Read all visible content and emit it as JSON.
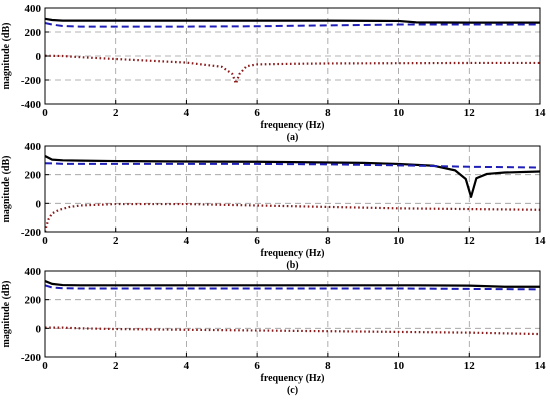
{
  "chart_data": [
    {
      "type": "line",
      "caption": "(a)",
      "xlabel": "frequency (Hz)",
      "ylabel": "magnitude (dB)",
      "xlim": [
        0,
        14
      ],
      "ylim": [
        -400,
        400
      ],
      "xticks": [
        0,
        2,
        4,
        6,
        8,
        10,
        12,
        14
      ],
      "yticks": [
        -400,
        -200,
        0,
        200,
        400
      ],
      "grid": true,
      "series": [
        {
          "color": "#000000",
          "style": "solid",
          "x": [
            0,
            0.2,
            0.5,
            1,
            2,
            4,
            6,
            8,
            10,
            10.5,
            12,
            14
          ],
          "y": [
            310,
            300,
            295,
            295,
            295,
            295,
            295,
            295,
            292,
            280,
            278,
            278
          ]
        },
        {
          "color": "#1f1fb8",
          "style": "dashed",
          "x": [
            0,
            0.2,
            0.5,
            1,
            2,
            4,
            6,
            8,
            10,
            12,
            14
          ],
          "y": [
            275,
            262,
            250,
            245,
            245,
            245,
            248,
            255,
            262,
            262,
            262
          ]
        },
        {
          "color": "#8b1a1a",
          "style": "dotted",
          "x": [
            0,
            0.5,
            1,
            2,
            3,
            4,
            5,
            5.3,
            5.4,
            5.5,
            5.7,
            6,
            7,
            8,
            10,
            12,
            14
          ],
          "y": [
            2,
            0,
            -10,
            -25,
            -40,
            -55,
            -90,
            -150,
            -230,
            -150,
            -85,
            -70,
            -65,
            -62,
            -60,
            -58,
            -58
          ]
        }
      ]
    },
    {
      "type": "line",
      "caption": "(b)",
      "xlabel": "frequency (Hz)",
      "ylabel": "magnitude (dB)",
      "xlim": [
        0,
        14
      ],
      "ylim": [
        -200,
        400
      ],
      "xticks": [
        0,
        2,
        4,
        6,
        8,
        10,
        12,
        14
      ],
      "yticks": [
        -200,
        0,
        200,
        400
      ],
      "grid": true,
      "series": [
        {
          "color": "#000000",
          "style": "solid",
          "x": [
            0,
            0.2,
            0.5,
            1,
            2,
            4,
            6,
            8,
            9,
            10,
            11,
            11.6,
            11.9,
            12.05,
            12.2,
            12.5,
            13,
            14
          ],
          "y": [
            330,
            305,
            300,
            298,
            295,
            292,
            290,
            285,
            282,
            275,
            262,
            230,
            170,
            45,
            175,
            205,
            215,
            222
          ]
        },
        {
          "color": "#1f1fb8",
          "style": "dashed",
          "x": [
            0,
            0.3,
            0.5,
            1,
            2,
            4,
            6,
            8,
            10,
            12,
            14
          ],
          "y": [
            280,
            278,
            275,
            275,
            275,
            275,
            275,
            272,
            265,
            255,
            250
          ]
        },
        {
          "color": "#8b1a1a",
          "style": "dotted",
          "x": [
            0,
            0.05,
            0.1,
            0.2,
            0.4,
            0.7,
            1,
            1.5,
            2,
            3,
            4,
            6,
            8,
            10,
            12,
            14
          ],
          "y": [
            -200,
            -150,
            -110,
            -70,
            -45,
            -25,
            -15,
            -10,
            -5,
            -5,
            -5,
            -15,
            -25,
            -35,
            -40,
            -45
          ]
        }
      ]
    },
    {
      "type": "line",
      "caption": "(c)",
      "xlabel": "frequency (Hz)",
      "ylabel": "magnitude (dB)",
      "xlim": [
        0,
        14
      ],
      "ylim": [
        -200,
        400
      ],
      "xticks": [
        0,
        2,
        4,
        6,
        8,
        10,
        12,
        14
      ],
      "yticks": [
        -200,
        0,
        200,
        400
      ],
      "grid": true,
      "series": [
        {
          "color": "#000000",
          "style": "solid",
          "x": [
            0,
            0.2,
            0.5,
            1,
            2,
            4,
            6,
            8,
            10,
            10.5,
            12,
            13,
            14
          ],
          "y": [
            330,
            310,
            302,
            300,
            300,
            300,
            300,
            300,
            300,
            300,
            298,
            290,
            290
          ]
        },
        {
          "color": "#1f1fb8",
          "style": "dashed",
          "x": [
            0,
            0.2,
            0.5,
            1,
            2,
            4,
            6,
            8,
            10,
            12,
            14
          ],
          "y": [
            300,
            285,
            280,
            278,
            278,
            278,
            278,
            278,
            278,
            275,
            272
          ]
        },
        {
          "color": "#8b1a1a",
          "style": "dotted",
          "x": [
            0,
            0.5,
            1,
            2,
            4,
            6,
            8,
            10,
            12,
            14
          ],
          "y": [
            5,
            5,
            0,
            -5,
            -10,
            -15,
            -20,
            -25,
            -30,
            -40
          ]
        }
      ]
    }
  ]
}
